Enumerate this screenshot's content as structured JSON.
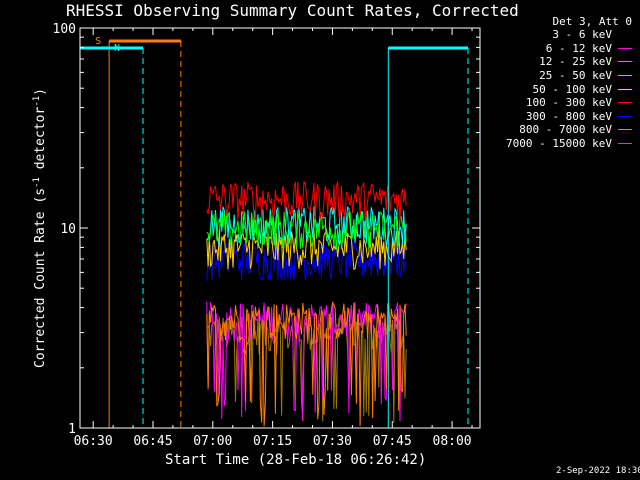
{
  "chart_data": {
    "type": "line",
    "title": "RHESSI Observing Summary Count Rates, Corrected",
    "xlabel": "Start Time (28-Feb-18 06:26:42)",
    "ylabel_main": "Corrected Count Rate (s",
    "ylabel_sup1": "-1",
    "ylabel_mid": " detector",
    "ylabel_sup2": "-1",
    "ylabel_end": ")",
    "yscale": "log",
    "ylim": [
      1,
      100
    ],
    "xlim": [
      "06:26:42",
      "08:07:00"
    ],
    "x_ticks": [
      "06:30",
      "06:45",
      "07:00",
      "07:15",
      "07:30",
      "07:45",
      "08:00"
    ],
    "y_ticks": [
      "1",
      "10",
      "100"
    ],
    "legend_header": "Det 3, Att 0",
    "legend_position": "right",
    "series": [
      {
        "name": "3 - 6 keV",
        "color": "#000000",
        "approx_level": 5.5
      },
      {
        "name": "6 - 12 keV",
        "color": "#ff00ff",
        "approx_level": 3.5
      },
      {
        "name": "12 - 25 keV",
        "color": "#00ff00",
        "approx_level": 10
      },
      {
        "name": "25 - 50 keV",
        "color": "#00ffff",
        "approx_level": 10.5
      },
      {
        "name": "50 - 100 keV",
        "color": "#ffd000",
        "approx_level": 8
      },
      {
        "name": "100 - 300 keV",
        "color": "#ff0000",
        "approx_level": 14
      },
      {
        "name": "300 - 800 keV",
        "color": "#0000ff",
        "approx_level": 7
      },
      {
        "name": "800 - 7000 keV",
        "color": "#ff8000",
        "approx_level": 3.5
      },
      {
        "name": "7000 - 15000 keV",
        "color": "#a07800",
        "approx_level": 3
      }
    ],
    "data_window": {
      "start": "06:58:30",
      "end": "07:48:30"
    },
    "markers": [
      {
        "label": "S",
        "color": "#ff8000",
        "start": "06:34:00",
        "end": "06:52:00"
      },
      {
        "label": "N",
        "color": "#00ffff",
        "start": "06:26:42",
        "end": "06:42:30"
      },
      {
        "label": "",
        "color": "#00ffff",
        "start": "07:44:00",
        "end": "08:04:00"
      }
    ]
  },
  "footer": "2-Sep-2022 18:30"
}
